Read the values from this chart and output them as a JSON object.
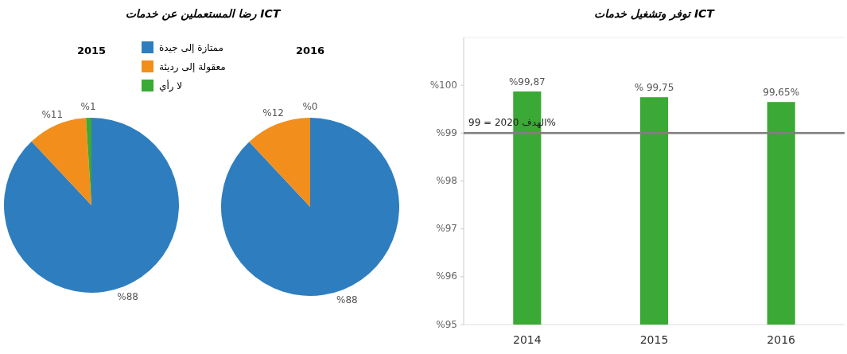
{
  "chart_data": [
    {
      "type": "pie",
      "title": "رضا المستعملين عن خدمات ICT",
      "subtitle": "2015",
      "categories": [
        "ممتازة إلى جيدة",
        "معقولة إلى رديئة",
        "لا رأي"
      ],
      "values": [
        88,
        11,
        1
      ],
      "colors": [
        "#2e7ebf",
        "#f28e1c",
        "#3aa935"
      ],
      "value_labels": [
        "%88",
        "%11",
        "%1"
      ],
      "legend": "top right"
    },
    {
      "type": "pie",
      "subtitle": "2016",
      "categories": [
        null,
        null,
        null
      ],
      "values": [
        88,
        12,
        0
      ],
      "colors": [
        "#2e7ebf",
        "#f28e1c",
        "#3aa935"
      ],
      "value_labels": [
        "%88",
        "%12",
        "%0"
      ]
    },
    {
      "type": "bar",
      "title": "توفر وتشغيل خدمات ICT",
      "categories": [
        "2014",
        "2015",
        "2016"
      ],
      "values": [
        99.87,
        99.75,
        99.65
      ],
      "color": "#3aa935",
      "value_labels": [
        "%99,87",
        "% 99,75",
        "99,65%"
      ],
      "ylim": [
        95,
        101
      ],
      "yticks": [
        {
          "value": 95,
          "label": "%95"
        },
        {
          "value": 96,
          "label": "%96"
        },
        {
          "value": 97,
          "label": "%97"
        },
        {
          "value": 98,
          "label": "%98"
        },
        {
          "value": 99,
          "label": "%99"
        },
        {
          "value": 100,
          "label": "%100"
        }
      ],
      "grid": false,
      "ref_lines": [
        {
          "axis": "y",
          "value": 99,
          "label": "الهدف 2020 = 99%",
          "color": "#808080"
        }
      ]
    }
  ]
}
